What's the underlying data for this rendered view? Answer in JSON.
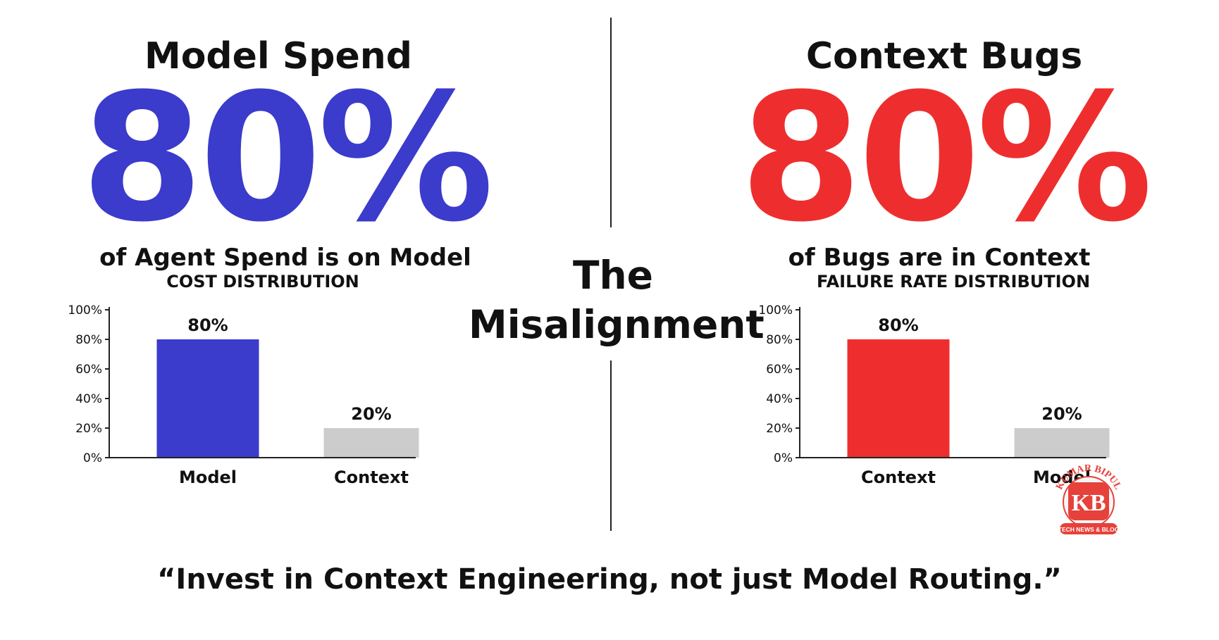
{
  "left": {
    "heading": "Model Spend",
    "big_number": "80%",
    "subline": "of Agent Spend is on Model",
    "color": "#3b3bcc"
  },
  "right": {
    "heading": "Context Bugs",
    "big_number": "80%",
    "subline": "of Bugs are in Context",
    "color": "#ee2e2e"
  },
  "center_title": [
    "The",
    "Misalignment"
  ],
  "quote": "“Invest in Context Engineering, not just Model Routing.”",
  "watermark": {
    "top_text": "KUMAR BIPUL",
    "bottom_text": "TECH NEWS & BLOG",
    "monogram": "KB"
  },
  "chart_data": [
    {
      "type": "bar",
      "title": "COST DISTRIBUTION",
      "categories": [
        "Model",
        "Context"
      ],
      "values": [
        80,
        20
      ],
      "data_labels": [
        "80%",
        "20%"
      ],
      "bar_colors": [
        "#3b3bcc",
        "#cccccc"
      ],
      "ylim": [
        0,
        100
      ],
      "yticks": [
        0,
        20,
        40,
        60,
        80,
        100
      ],
      "ytick_labels": [
        "0%",
        "20%",
        "40%",
        "60%",
        "80%",
        "100%"
      ],
      "grid": false
    },
    {
      "type": "bar",
      "title": "FAILURE RATE DISTRIBUTION",
      "categories": [
        "Context",
        "Model"
      ],
      "values": [
        80,
        20
      ],
      "data_labels": [
        "80%",
        "20%"
      ],
      "bar_colors": [
        "#ee2e2e",
        "#cccccc"
      ],
      "ylim": [
        0,
        100
      ],
      "yticks": [
        0,
        20,
        40,
        60,
        80,
        100
      ],
      "ytick_labels": [
        "0%",
        "20%",
        "40%",
        "60%",
        "80%",
        "100%"
      ],
      "grid": false
    }
  ]
}
